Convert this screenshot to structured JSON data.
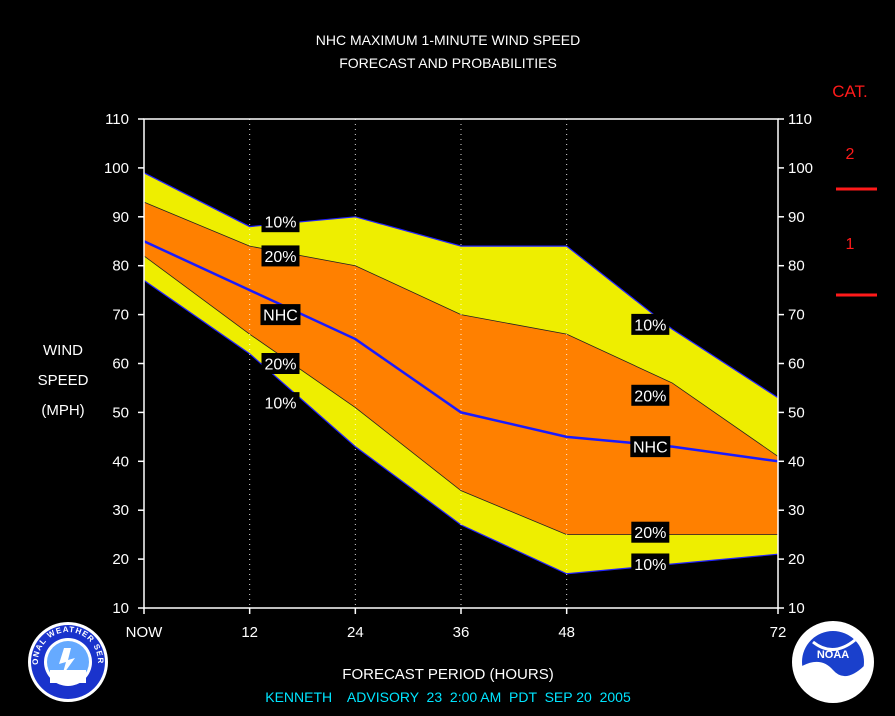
{
  "title": {
    "line1": "NHC MAXIMUM 1-MINUTE WIND SPEED",
    "line2": "FORECAST AND PROBABILITIES"
  },
  "y_axis_label": [
    "WIND",
    "SPEED",
    "(MPH)"
  ],
  "x_axis_label": "FORECAST PERIOD (HOURS)",
  "advisory": "KENNETH    ADVISORY  23  2:00 AM  PDT  SEP 20  2005",
  "category": {
    "heading": "CAT.",
    "levels": [
      "2",
      "1"
    ],
    "thresholds_mph": [
      96,
      74
    ],
    "color": "#ff1a1a"
  },
  "colors": {
    "outer_band": "#eeee00",
    "inner_band": "#ff8000",
    "forecast_line": "#1a1aff",
    "background": "#000000"
  },
  "logos": {
    "left": "nws-logo",
    "left_text": "NATIONAL WEATHER SERVICE",
    "right": "noaa-logo",
    "right_text": "NOAA"
  },
  "chart_data": {
    "type": "area",
    "x_ticks": [
      0,
      12,
      24,
      36,
      48,
      72
    ],
    "x_tick_labels": [
      "NOW",
      "12",
      "24",
      "36",
      "48",
      "72"
    ],
    "xlim": [
      0,
      72
    ],
    "ylim": [
      10,
      110
    ],
    "y_ticks": [
      10,
      20,
      30,
      40,
      50,
      60,
      70,
      80,
      90,
      100,
      110
    ],
    "grid_x": [
      12,
      24,
      36,
      48
    ],
    "x": [
      0,
      12,
      24,
      36,
      48,
      60,
      72
    ],
    "series": [
      {
        "name": "10%",
        "upper": [
          99,
          88,
          90,
          84,
          84,
          67,
          53
        ],
        "lower": [
          77,
          62,
          43,
          27,
          17,
          19,
          21
        ]
      },
      {
        "name": "20%",
        "upper": [
          93,
          84,
          80,
          70,
          66,
          56,
          41
        ],
        "lower": [
          82,
          66,
          51,
          34,
          25,
          25,
          25
        ]
      },
      {
        "name": "NHC",
        "values": [
          85,
          75,
          65,
          50,
          45,
          43,
          40
        ]
      }
    ],
    "labels": [
      {
        "text": "10%",
        "x": 15.5,
        "y": 89
      },
      {
        "text": "20%",
        "x": 15.5,
        "y": 82
      },
      {
        "text": "NHC",
        "x": 15.5,
        "y": 70
      },
      {
        "text": "20%",
        "x": 15.5,
        "y": 60
      },
      {
        "text": "10%",
        "x": 15.5,
        "y": 52
      },
      {
        "text": "10%",
        "x": 57.5,
        "y": 68
      },
      {
        "text": "20%",
        "x": 57.5,
        "y": 53.5
      },
      {
        "text": "NHC",
        "x": 57.5,
        "y": 43
      },
      {
        "text": "20%",
        "x": 57.5,
        "y": 25.5
      },
      {
        "text": "10%",
        "x": 57.5,
        "y": 19
      }
    ]
  }
}
